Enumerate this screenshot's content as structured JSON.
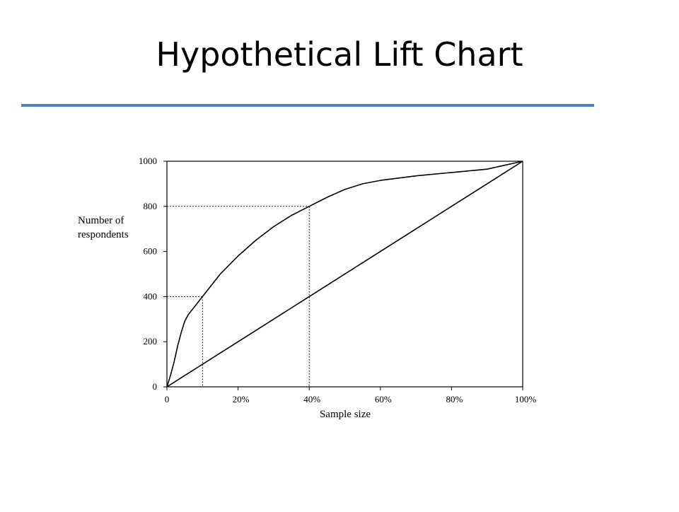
{
  "slide": {
    "title": "Hypothetical Lift Chart"
  },
  "colors": {
    "accent_rule": "#4f81bd",
    "ink": "#000000"
  },
  "chart_data": {
    "type": "line",
    "xlabel": "Sample size",
    "ylabel_lines": [
      "Number of",
      "respondents"
    ],
    "xlim": [
      0,
      100
    ],
    "ylim": [
      0,
      1000
    ],
    "x_ticks": [
      0,
      20,
      40,
      60,
      80,
      100
    ],
    "x_tick_labels": [
      "0",
      "20%",
      "40%",
      "60%",
      "80%",
      "100%"
    ],
    "y_ticks": [
      0,
      200,
      400,
      600,
      800,
      1000
    ],
    "y_tick_labels": [
      "0",
      "200",
      "400",
      "600",
      "800",
      "1000"
    ],
    "grid": false,
    "series": [
      {
        "style": "solid",
        "x": [
          0,
          1,
          2,
          3,
          4,
          5,
          6,
          8,
          10,
          12,
          15,
          20,
          25,
          30,
          35,
          40,
          45,
          50,
          55,
          60,
          70,
          80,
          90,
          100
        ],
        "y": [
          0,
          50,
          110,
          180,
          240,
          290,
          320,
          360,
          400,
          440,
          500,
          580,
          650,
          710,
          760,
          800,
          840,
          875,
          900,
          915,
          935,
          950,
          965,
          1000
        ]
      },
      {
        "style": "solid",
        "x": [
          0,
          100
        ],
        "y": [
          0,
          1000
        ]
      }
    ],
    "reference_points": [
      {
        "x": 10,
        "y": 400
      },
      {
        "x": 40,
        "y": 800
      }
    ]
  }
}
